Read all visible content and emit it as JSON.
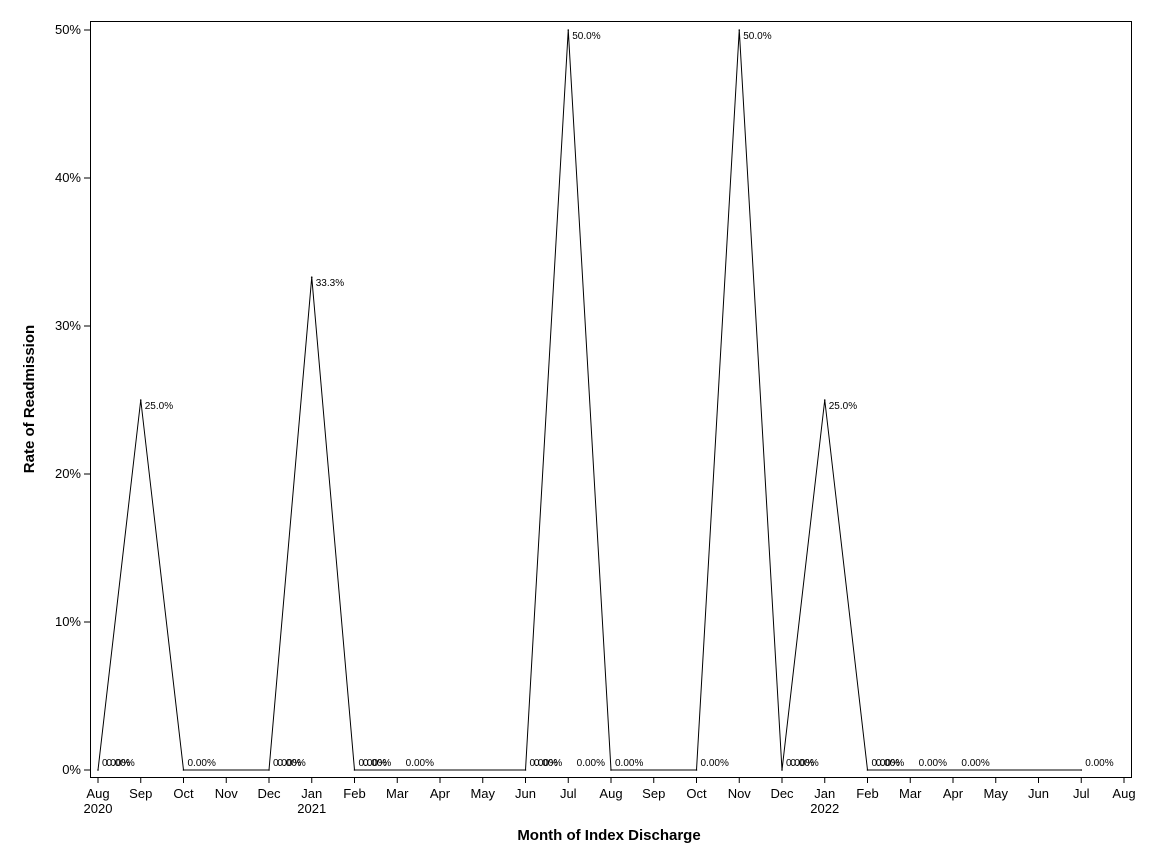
{
  "chart_data": {
    "type": "line",
    "xlabel": "Month of Index Discharge",
    "ylabel": "Rate of Readmission",
    "ylim": [
      0,
      50
    ],
    "y_ticks": [
      "0%",
      "10%",
      "20%",
      "30%",
      "40%",
      "50%"
    ],
    "x_ticks": [
      {
        "month": "Aug",
        "year": "2020"
      },
      {
        "month": "Sep",
        "year": ""
      },
      {
        "month": "Oct",
        "year": ""
      },
      {
        "month": "Nov",
        "year": ""
      },
      {
        "month": "Dec",
        "year": ""
      },
      {
        "month": "Jan",
        "year": "2021"
      },
      {
        "month": "Feb",
        "year": ""
      },
      {
        "month": "Mar",
        "year": ""
      },
      {
        "month": "Apr",
        "year": ""
      },
      {
        "month": "May",
        "year": ""
      },
      {
        "month": "Jun",
        "year": ""
      },
      {
        "month": "Jul",
        "year": ""
      },
      {
        "month": "Aug",
        "year": ""
      },
      {
        "month": "Sep",
        "year": ""
      },
      {
        "month": "Oct",
        "year": ""
      },
      {
        "month": "Nov",
        "year": ""
      },
      {
        "month": "Dec",
        "year": ""
      },
      {
        "month": "Jan",
        "year": "2022"
      },
      {
        "month": "Feb",
        "year": ""
      },
      {
        "month": "Mar",
        "year": ""
      },
      {
        "month": "Apr",
        "year": ""
      },
      {
        "month": "May",
        "year": ""
      },
      {
        "month": "Jun",
        "year": ""
      },
      {
        "month": "Jul",
        "year": ""
      },
      {
        "month": "Aug",
        "year": ""
      }
    ],
    "points": [
      {
        "date": "2020-08",
        "value": 0,
        "label": "0.00%"
      },
      {
        "date": "2020-09",
        "value": 25,
        "label": "25.0%"
      },
      {
        "date": "2020-10",
        "value": 0,
        "label": "0.00%"
      },
      {
        "date": "2020-12",
        "value": 0,
        "label": "0.00%"
      },
      {
        "date": "2021-01",
        "value": 33.3,
        "label": "33.3%"
      },
      {
        "date": "2021-02",
        "value": 0,
        "label": "0.00%"
      },
      {
        "date": "2021-06",
        "value": 0,
        "label": "0.00%"
      },
      {
        "date": "2021-07",
        "value": 50,
        "label": "50.0%"
      },
      {
        "date": "2021-08",
        "value": 0,
        "label": "0.00%"
      },
      {
        "date": "2021-10",
        "value": 0,
        "label": "0.00%"
      },
      {
        "date": "2021-11",
        "value": 50,
        "label": "50.0%"
      },
      {
        "date": "2021-12",
        "value": 0,
        "label": "0.00%"
      },
      {
        "date": "2022-01",
        "value": 25,
        "label": "25.0%"
      },
      {
        "date": "2022-02",
        "value": 0,
        "label": "0.00%"
      },
      {
        "date": "2022-07",
        "value": 0,
        "label": "0.00%"
      }
    ],
    "extra_labels": [
      {
        "date": "2020-09",
        "label": "0.00%"
      },
      {
        "date": "2021-01",
        "label": "0.00%"
      },
      {
        "date": "2021-03",
        "label": "0.00%"
      },
      {
        "date": "2021-04",
        "label": "0.00%"
      },
      {
        "date": "2021-07",
        "label": "0.00%"
      },
      {
        "date": "2021-08",
        "label": "0.00%"
      },
      {
        "date": "2022-01",
        "label": "0.00%"
      },
      {
        "date": "2022-03",
        "label": "0.00%"
      },
      {
        "date": "2022-04",
        "label": "0.00%"
      },
      {
        "date": "2022-05",
        "label": "0.00%"
      }
    ],
    "line_color": "#000000",
    "grid": false
  }
}
